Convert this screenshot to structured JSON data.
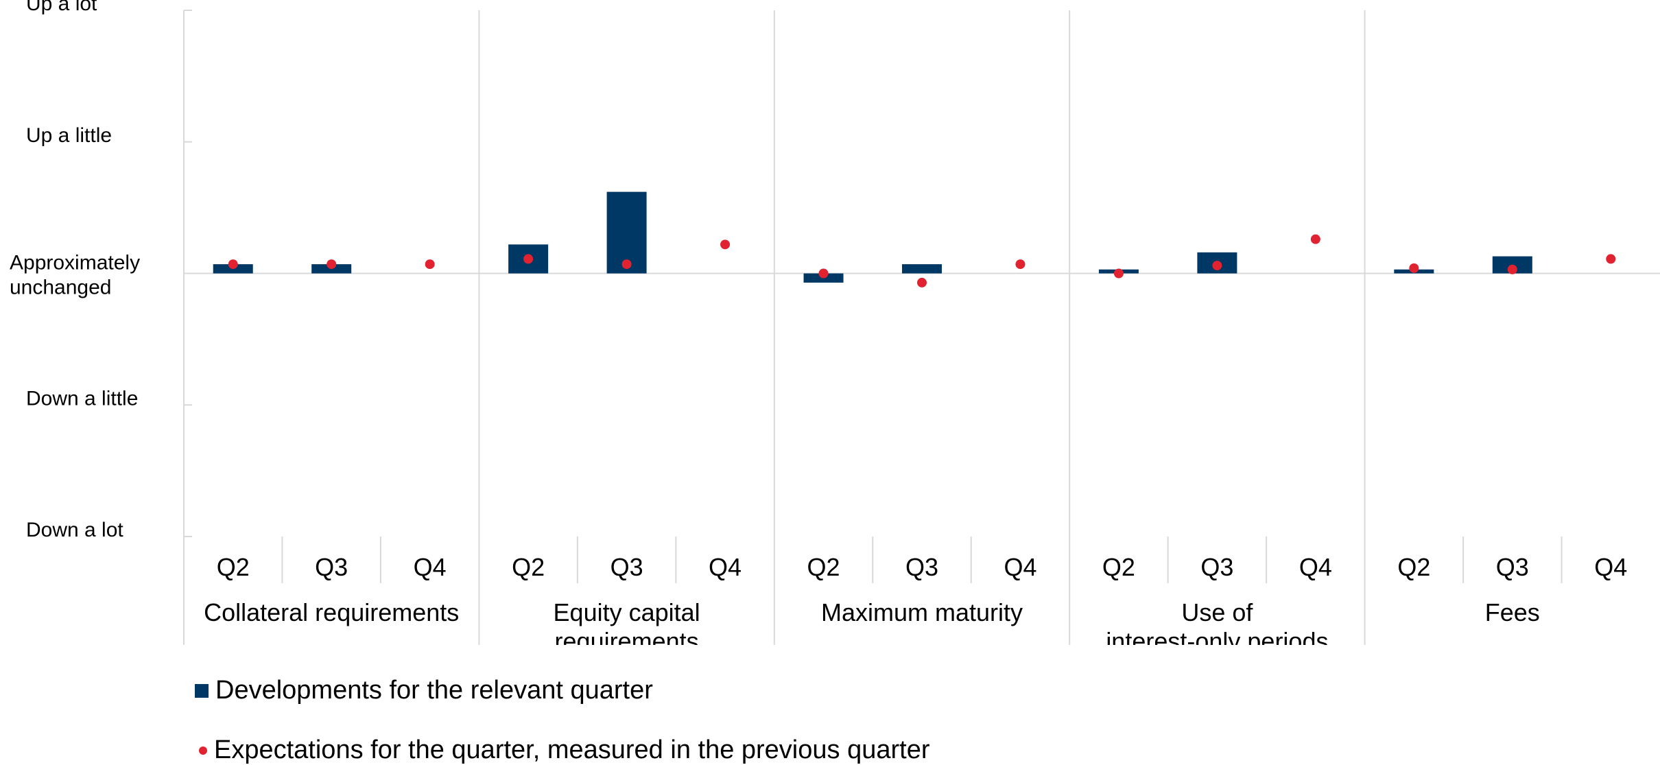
{
  "chart_data": {
    "type": "bar",
    "y_ticks": [
      "Up a lot",
      "Up a little",
      "Approximately unchanged",
      "Down a little",
      "Down a lot"
    ],
    "y_tick_values": [
      2,
      1,
      0,
      -1,
      -2
    ],
    "ylim": [
      -2,
      2
    ],
    "groups": [
      {
        "label": "Collateral requirements",
        "categories": [
          "Q2",
          "Q3",
          "Q4"
        ],
        "developments": [
          0.07,
          0.07,
          null
        ],
        "expectations": [
          0.07,
          0.07,
          0.07
        ]
      },
      {
        "label": "Equity capital requirements",
        "categories": [
          "Q2",
          "Q3",
          "Q4"
        ],
        "developments": [
          0.22,
          0.62,
          null
        ],
        "expectations": [
          0.11,
          0.07,
          0.22
        ]
      },
      {
        "label": "Maximum maturity",
        "categories": [
          "Q2",
          "Q3",
          "Q4"
        ],
        "developments": [
          -0.07,
          0.07,
          null
        ],
        "expectations": [
          0.0,
          -0.07,
          0.07
        ]
      },
      {
        "label": "Use of interest-only periods",
        "categories": [
          "Q2",
          "Q3",
          "Q4"
        ],
        "developments": [
          0.03,
          0.16,
          null
        ],
        "expectations": [
          0.0,
          0.06,
          0.26
        ]
      },
      {
        "label": "Fees",
        "categories": [
          "Q2",
          "Q3",
          "Q4"
        ],
        "developments": [
          0.03,
          0.13,
          null
        ],
        "expectations": [
          0.04,
          0.03,
          0.11
        ]
      }
    ],
    "series": [
      {
        "name": "Developments for the relevant quarter",
        "kind": "bar",
        "color": "#003865"
      },
      {
        "name": "Expectations for the quarter, measured in the previous quarter",
        "kind": "dot",
        "color": "#e02231"
      }
    ],
    "grid": false,
    "legend_position": "bottom-left"
  }
}
